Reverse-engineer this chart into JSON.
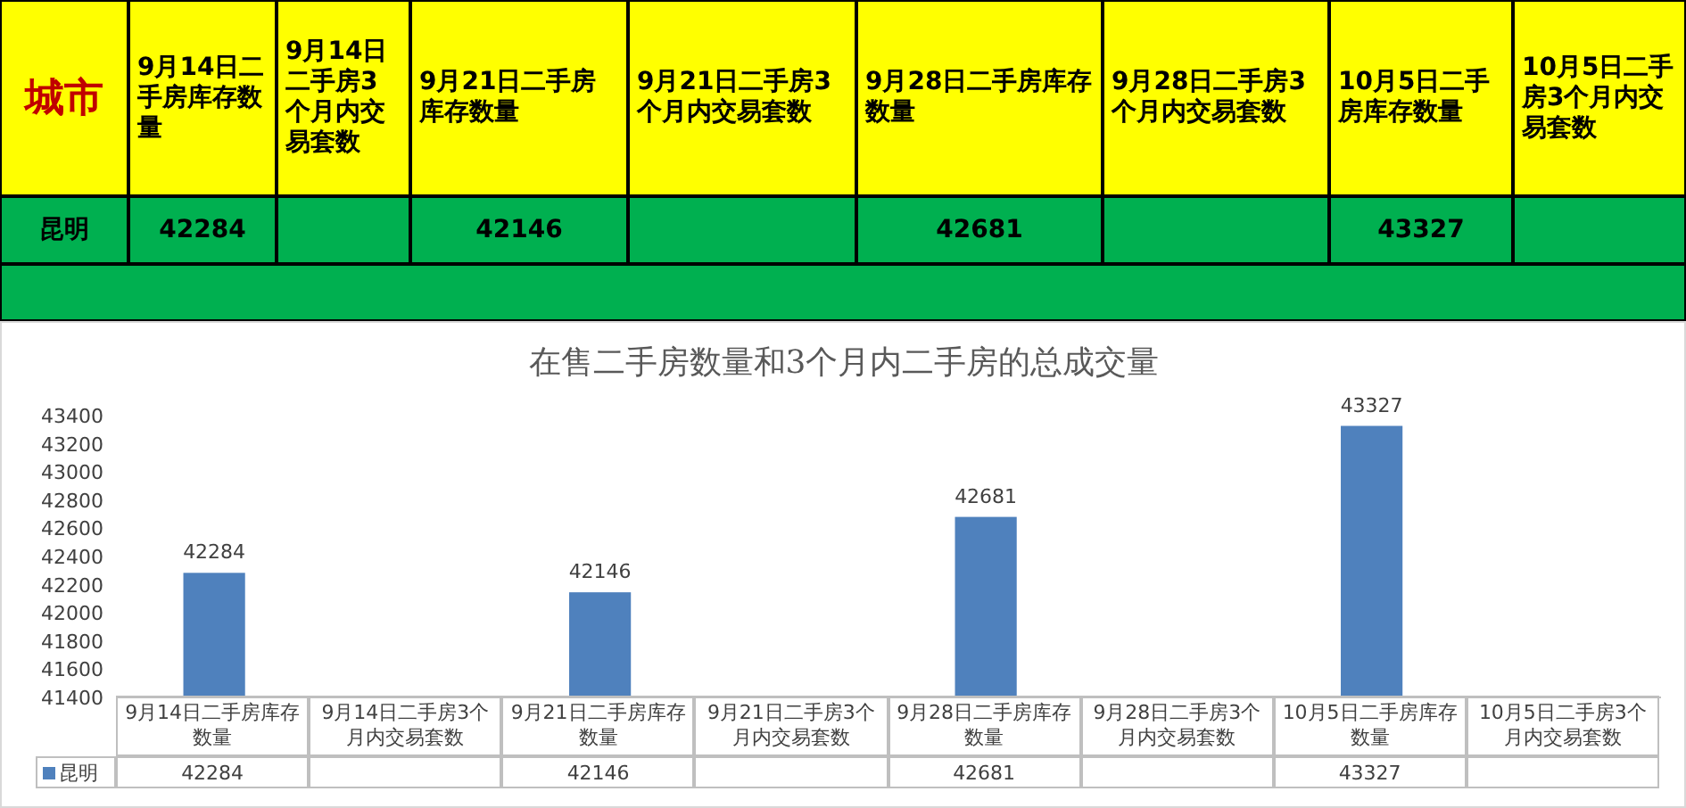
{
  "chart_data": {
    "type": "bar",
    "title": "在售二手房数量和3个月内二手房的总成交量",
    "categories": [
      "9月14日二手房库存数量",
      "9月14日二手房3个月内交易套数",
      "9月21日二手房库存数量",
      "9月21日二手房3个月内交易套数",
      "9月28日二手房库存数量",
      "9月28日二手房3个月内交易套数",
      "10月5日二手房库存数量",
      "10月5日二手房3个月内交易套数"
    ],
    "series": [
      {
        "name": "昆明",
        "color": "#4f81bd",
        "values": [
          42284,
          null,
          42146,
          null,
          42681,
          null,
          43327,
          null
        ]
      }
    ],
    "ylim": [
      41400,
      43400
    ],
    "yticks": [
      41400,
      41600,
      41800,
      42000,
      42200,
      42400,
      42600,
      42800,
      43000,
      43200,
      43400
    ],
    "value_labels": [
      "42284",
      null,
      "42146",
      null,
      "42681",
      null,
      "43327",
      null
    ],
    "legend": "bottom",
    "grid": false,
    "annotations": [
      "城市"
    ]
  }
}
